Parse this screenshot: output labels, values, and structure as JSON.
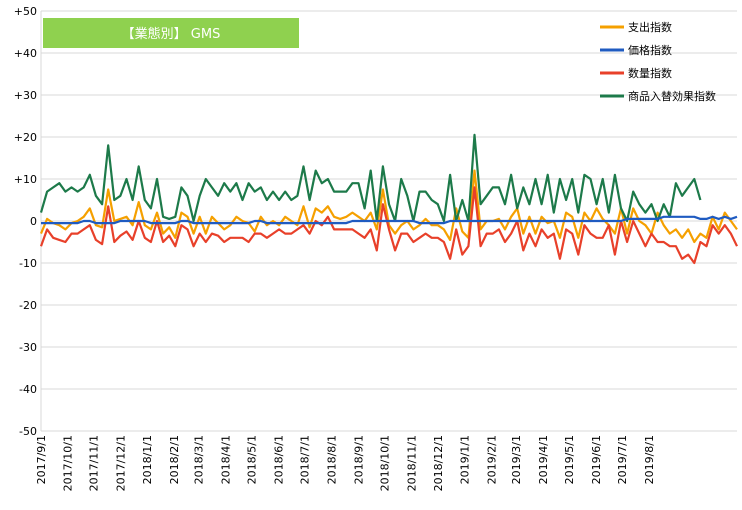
{
  "chart_data": {
    "type": "line",
    "title": "【業態別】 GMS",
    "ylim": [
      -50,
      50
    ],
    "y_ticks": [
      "+50",
      "+40",
      "+30",
      "+20",
      "+10",
      "0",
      "-10",
      "-20",
      "-30",
      "-40",
      "-50"
    ],
    "y_tick_values": [
      50,
      40,
      30,
      20,
      10,
      0,
      -10,
      -20,
      -30,
      -40,
      -50
    ],
    "x_tick_labels": [
      "2017/9/1",
      "2017/10/1",
      "2017/11/1",
      "2017/12/1",
      "2018/1/1",
      "2018/2/1",
      "2018/3/1",
      "2018/4/1",
      "2018/5/1",
      "2018/6/1",
      "2018/7/1",
      "2018/8/1",
      "2018/9/1",
      "2018/10/1",
      "2018/11/1",
      "2018/12/1",
      "2019/1/1",
      "2019/2/1",
      "2019/3/1",
      "2019/4/1",
      "2019/5/1",
      "2019/6/1",
      "2019/7/1",
      "2019/8/1"
    ],
    "x_tick_indices": [
      0,
      4.3,
      8.6,
      13,
      17.4,
      21.8,
      25.8,
      30.2,
      34.5,
      38.9,
      43.2,
      47.6,
      52,
      56.3,
      60.7,
      65,
      69.4,
      73.8,
      77.8,
      82.2,
      86.5,
      90.9,
      95.2,
      99.6
    ],
    "grid": "horizontal",
    "legend_position": "top-right",
    "series": [
      {
        "name": "支出指数",
        "color": "#f5a000",
        "values": [
          -3,
          0.5,
          -0.5,
          -1,
          -2,
          -0.5,
          0,
          1,
          3,
          -1,
          -1.5,
          7.5,
          0,
          0.5,
          1,
          -1,
          4.5,
          -1,
          -2,
          2,
          -3,
          -1.5,
          -4,
          2,
          1,
          -3,
          1,
          -3,
          1,
          -0.5,
          -2,
          -1,
          1,
          0,
          -0.5,
          -2.5,
          1,
          -1,
          0,
          -1,
          1,
          0,
          -1,
          3.5,
          -1.5,
          3,
          2,
          3.5,
          1,
          0.5,
          1,
          2,
          1,
          0,
          2,
          -2,
          7.5,
          -1,
          -3,
          -1,
          0,
          -2,
          -1,
          0.5,
          -1,
          -1,
          -2,
          -4.5,
          3,
          -2.5,
          -4,
          12,
          -2,
          0,
          0,
          0.5,
          -2,
          1,
          3,
          -3,
          1,
          -3,
          1,
          -0.5,
          0,
          -4,
          2,
          1,
          -4,
          2,
          0,
          3,
          0.5,
          -1,
          -3,
          3,
          -3,
          3,
          0,
          -1,
          -3,
          2,
          -1,
          -3,
          -2,
          -4,
          -2,
          -5,
          -3,
          -4,
          1,
          -2,
          2,
          0,
          -2
        ]
      },
      {
        "name": "価格指数",
        "color": "#1f5bc1",
        "values": [
          -0.5,
          -0.5,
          -0.5,
          -0.5,
          -0.5,
          -0.5,
          -0.5,
          0,
          0,
          -0.5,
          -0.5,
          -0.5,
          -0.5,
          0,
          0,
          0,
          0,
          0,
          -0.5,
          -0.5,
          -0.5,
          -0.5,
          -0.5,
          0,
          0,
          -0.5,
          -0.5,
          -0.5,
          -0.5,
          -0.5,
          -0.5,
          -0.5,
          -0.5,
          -0.5,
          -0.5,
          0,
          0,
          -0.5,
          -0.5,
          -0.5,
          -0.5,
          -0.5,
          -0.5,
          -0.5,
          -0.5,
          -0.5,
          -0.5,
          -0.5,
          -0.5,
          -0.5,
          -0.5,
          0,
          0,
          0,
          0,
          0,
          0,
          0,
          0,
          0,
          0,
          0,
          -0.5,
          -0.5,
          -0.5,
          -0.5,
          -0.5,
          0,
          0,
          0,
          0,
          0,
          0,
          0,
          0,
          0,
          0,
          0,
          0,
          0,
          0,
          0,
          0,
          0,
          0,
          0,
          0,
          0,
          0,
          0,
          0,
          0,
          0,
          0,
          0,
          0,
          0.5,
          0.5,
          0.5,
          0.5,
          0.5,
          0.5,
          1,
          1,
          1,
          1,
          1,
          1,
          0.5,
          0.5,
          1,
          0.5,
          1,
          0.5,
          1
        ]
      },
      {
        "name": "数量指数",
        "color": "#e8402a",
        "values": [
          -6,
          -2,
          -4,
          -4.5,
          -5,
          -3,
          -3,
          -2,
          -1,
          -4.5,
          -5.5,
          3.5,
          -5,
          -3.5,
          -2.5,
          -4.5,
          0,
          -4,
          -5,
          0,
          -5,
          -3.5,
          -6,
          -1,
          -2,
          -6,
          -3,
          -5,
          -3,
          -3.5,
          -5,
          -4,
          -4,
          -4,
          -5,
          -3,
          -3,
          -4,
          -3,
          -2,
          -3,
          -3,
          -2,
          -1,
          -3,
          0,
          -1,
          1,
          -2,
          -2,
          -2,
          -2,
          -3,
          -4,
          -2,
          -7,
          4,
          -2,
          -7,
          -3,
          -3,
          -5,
          -4,
          -3,
          -4,
          -4,
          -5,
          -9,
          -2,
          -8,
          -6,
          8,
          -6,
          -3,
          -3,
          -2,
          -5,
          -3,
          0,
          -7,
          -3,
          -6,
          -2,
          -4,
          -3,
          -9,
          -2,
          -3,
          -8,
          -1,
          -3,
          -4,
          -4,
          -1,
          -8,
          0,
          -5,
          0,
          -3,
          -6,
          -3,
          -5,
          -5,
          -6,
          -6,
          -9,
          -8,
          -10,
          -5,
          -6,
          -1,
          -3,
          -1,
          -3,
          -6
        ]
      },
      {
        "name": "商品入替効果指数",
        "color": "#1d7a4a",
        "values": [
          2,
          7,
          8,
          9,
          7,
          8,
          7,
          8,
          11,
          6,
          4,
          18,
          5,
          6,
          10,
          5,
          13,
          5,
          3,
          10,
          1,
          0.5,
          1,
          8,
          6,
          0,
          6,
          10,
          8,
          6,
          9,
          7,
          9,
          5,
          9,
          7,
          8,
          5,
          7,
          5,
          7,
          5,
          6,
          13,
          5,
          12,
          9,
          10,
          7,
          7,
          7,
          9,
          9,
          3,
          12,
          0,
          13,
          4,
          0,
          10,
          6,
          0,
          7,
          7,
          5,
          4,
          0,
          11,
          0,
          5,
          0,
          20.5,
          4,
          6,
          8,
          8,
          4,
          11,
          3,
          8,
          4,
          10,
          4,
          11,
          2,
          10,
          5,
          10,
          2,
          11,
          10,
          4,
          10,
          2,
          11,
          3,
          0,
          7,
          4,
          2,
          4,
          0,
          4,
          1,
          9,
          6,
          8,
          10,
          5
        ]
      }
    ]
  }
}
